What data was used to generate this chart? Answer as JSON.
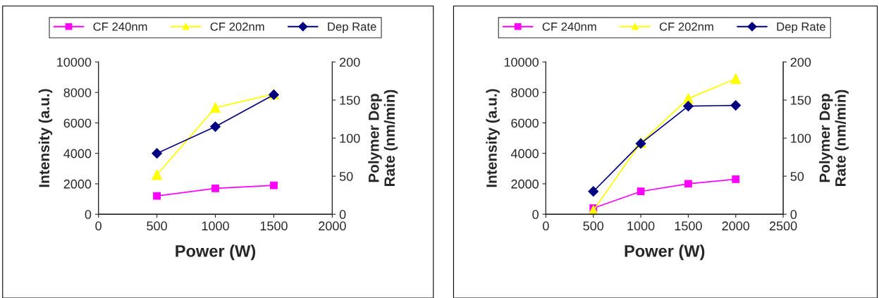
{
  "chart_data": [
    {
      "type": "line",
      "xlabel": "Power (W)",
      "ylabel": "Intensity (a.u.)",
      "y2label": "Polymer Dep\nRate (nm/min)",
      "x": [
        500,
        1000,
        1500
      ],
      "xlim": [
        0,
        2000
      ],
      "xticks": [
        0,
        500,
        1000,
        1500,
        2000
      ],
      "ylim": [
        0,
        10000
      ],
      "yticks": [
        0,
        2000,
        4000,
        6000,
        8000,
        10000
      ],
      "y2lim": [
        0,
        200
      ],
      "y2ticks": [
        0,
        50,
        100,
        150,
        200
      ],
      "grid": false,
      "legend": "top",
      "series": [
        {
          "name": "CF 240nm",
          "color": "#ff00ff",
          "marker": "square",
          "values": [
            1200,
            1700,
            1900
          ]
        },
        {
          "name": "CF 202nm",
          "color": "#ffff00",
          "marker": "triangle",
          "values": [
            2600,
            7000,
            7900
          ]
        },
        {
          "name": "Dep Rate",
          "color": "#000080",
          "marker": "diamond",
          "axis": "y2",
          "values": [
            80,
            115,
            157
          ]
        }
      ]
    },
    {
      "type": "line",
      "xlabel": "Power (W)",
      "ylabel": "Intensity (a.u.)",
      "y2label": "Polymer Dep\nRate (nm/min)",
      "x": [
        500,
        1000,
        1500,
        2000
      ],
      "xlim": [
        0,
        2500
      ],
      "xticks": [
        0,
        500,
        1000,
        1500,
        2000,
        2500
      ],
      "ylim": [
        0,
        10000
      ],
      "yticks": [
        0,
        2000,
        4000,
        6000,
        8000,
        10000
      ],
      "y2lim": [
        0,
        200
      ],
      "y2ticks": [
        0,
        50,
        100,
        150,
        200
      ],
      "grid": false,
      "legend": "top",
      "series": [
        {
          "name": "CF 240nm",
          "color": "#ff00ff",
          "marker": "square",
          "values": [
            400,
            1500,
            2000,
            2300
          ]
        },
        {
          "name": "CF 202nm",
          "color": "#ffff00",
          "marker": "triangle",
          "values": [
            250,
            4700,
            7600,
            8900
          ]
        },
        {
          "name": "Dep Rate",
          "color": "#000080",
          "marker": "diamond",
          "axis": "y2",
          "values": [
            30,
            93,
            142,
            143
          ]
        }
      ]
    }
  ]
}
